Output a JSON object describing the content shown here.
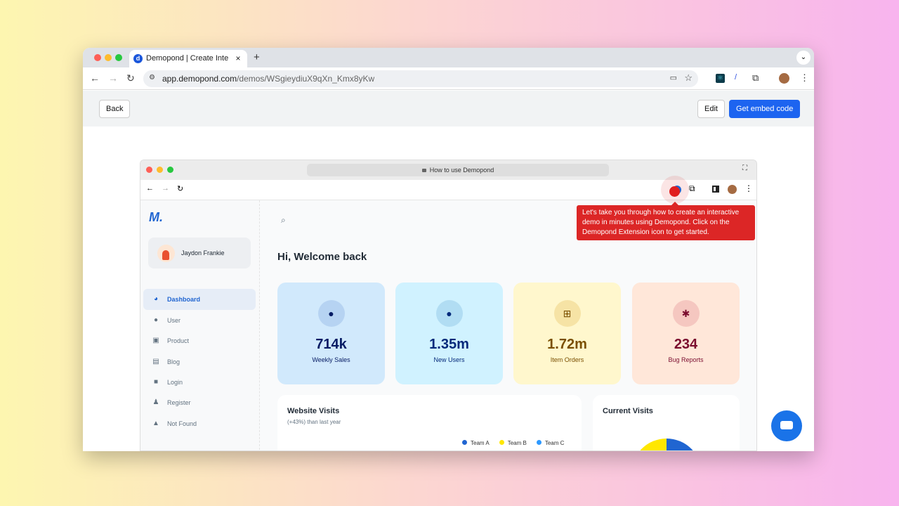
{
  "browser": {
    "tab_title": "Demopond | Create Interactive Demos",
    "url_host": "app.demopond.com",
    "url_path": "/demos/WSgieydiuX9qXn_Kmx8yKw",
    "new_tab": "+"
  },
  "toolbar": {
    "back_label": "Back",
    "edit_label": "Edit",
    "embed_label": "Get embed code"
  },
  "inner_browser": {
    "url_title": "How to use Demopond"
  },
  "tooltip": {
    "text": "Let's take you through how to create an interactive demo in minutes using Demopond. Click on the Demopond Extension icon to get started."
  },
  "sidebar": {
    "user_name": "Jaydon Frankie",
    "items": [
      {
        "label": "Dashboard",
        "icon": "pie-chart-icon",
        "active": true
      },
      {
        "label": "User",
        "icon": "users-icon"
      },
      {
        "label": "Product",
        "icon": "bag-icon"
      },
      {
        "label": "Blog",
        "icon": "document-icon"
      },
      {
        "label": "Login",
        "icon": "lock-icon"
      },
      {
        "label": "Register",
        "icon": "user-add-icon"
      },
      {
        "label": "Not Found",
        "icon": "warning-icon"
      }
    ]
  },
  "main": {
    "greeting": "Hi, Welcome back",
    "stats": [
      {
        "value": "714k",
        "label": "Weekly Sales",
        "icon": "android-icon",
        "bg": "#d1e9fc",
        "fg": "#061b64",
        "circle": "#b6d3f2"
      },
      {
        "value": "1.35m",
        "label": "New Users",
        "icon": "apple-icon",
        "bg": "#d0f2ff",
        "fg": "#04297a",
        "circle": "#b1ddf3"
      },
      {
        "value": "1.72m",
        "label": "Item Orders",
        "icon": "windows-icon",
        "bg": "#fff7cd",
        "fg": "#7a4f01",
        "circle": "#f6e3a5"
      },
      {
        "value": "234",
        "label": "Bug Reports",
        "icon": "bug-icon",
        "bg": "#ffe7d9",
        "fg": "#7a0c2e",
        "circle": "#f5c7c0"
      }
    ],
    "visits": {
      "title": "Website Visits",
      "subtitle": "(+43%) than last year",
      "legend": [
        {
          "name": "Team A",
          "color": "#2065d1"
        },
        {
          "name": "Team B",
          "color": "#ffe700"
        },
        {
          "name": "Team C",
          "color": "#2d99ff"
        }
      ]
    },
    "current": {
      "title": "Current Visits"
    }
  }
}
